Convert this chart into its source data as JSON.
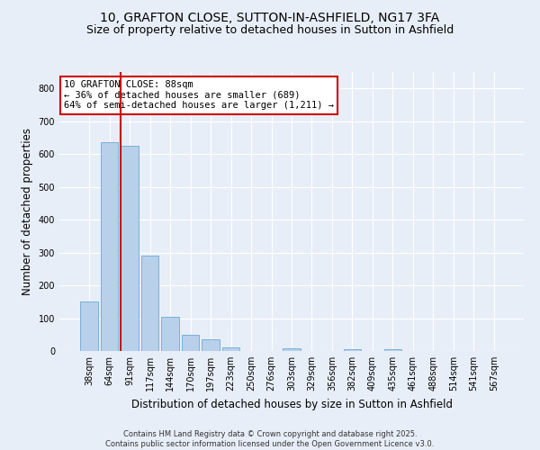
{
  "title_line1": "10, GRAFTON CLOSE, SUTTON-IN-ASHFIELD, NG17 3FA",
  "title_line2": "Size of property relative to detached houses in Sutton in Ashfield",
  "xlabel": "Distribution of detached houses by size in Sutton in Ashfield",
  "ylabel": "Number of detached properties",
  "categories": [
    "38sqm",
    "64sqm",
    "91sqm",
    "117sqm",
    "144sqm",
    "170sqm",
    "197sqm",
    "223sqm",
    "250sqm",
    "276sqm",
    "303sqm",
    "329sqm",
    "356sqm",
    "382sqm",
    "409sqm",
    "435sqm",
    "461sqm",
    "488sqm",
    "514sqm",
    "541sqm",
    "567sqm"
  ],
  "values": [
    150,
    635,
    625,
    290,
    105,
    48,
    35,
    10,
    0,
    0,
    8,
    0,
    0,
    5,
    0,
    5,
    0,
    0,
    0,
    0,
    0
  ],
  "bar_color": "#b8d0ea",
  "bar_edgecolor": "#6aaad4",
  "vline_color": "#cc0000",
  "annotation_box_text": "10 GRAFTON CLOSE: 88sqm\n← 36% of detached houses are smaller (689)\n64% of semi-detached houses are larger (1,211) →",
  "annotation_box_color": "#cc0000",
  "annotation_box_facecolor": "white",
  "ylim": [
    0,
    850
  ],
  "yticks": [
    0,
    100,
    200,
    300,
    400,
    500,
    600,
    700,
    800
  ],
  "background_color": "#e8eef8",
  "grid_color": "white",
  "footer": "Contains HM Land Registry data © Crown copyright and database right 2025.\nContains public sector information licensed under the Open Government Licence v3.0.",
  "title_fontsize": 10,
  "subtitle_fontsize": 9,
  "axis_label_fontsize": 8.5,
  "tick_fontsize": 7,
  "annotation_fontsize": 7.5,
  "footer_fontsize": 6
}
